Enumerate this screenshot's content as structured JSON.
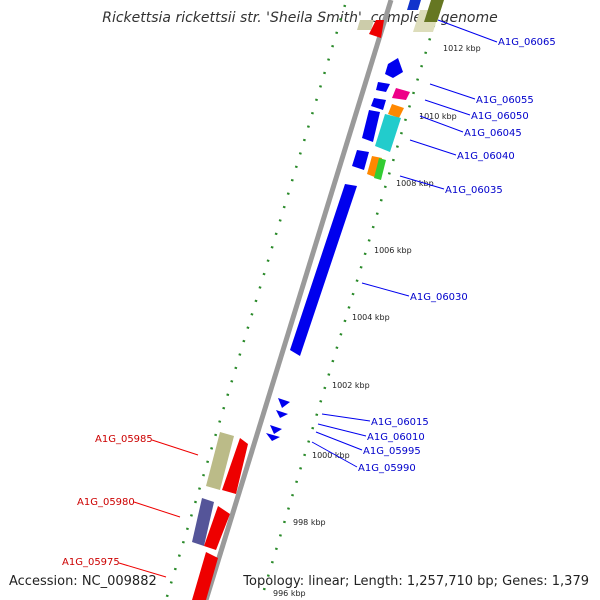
{
  "title": "Rickettsia rickettsii str. 'Sheila Smith', complete genome",
  "accession": "Accession: NC_009882",
  "summary": "Topology: linear; Length: 1,257,710 bp; Genes: 1,379",
  "colors": {
    "forward": "#0000ee",
    "reverse": "#ee0000",
    "axis": "#888888",
    "tick": "#228822"
  },
  "kbp_labels": [
    "996 kbp",
    "998 kbp",
    "1000 kbp",
    "1002 kbp",
    "1004 kbp",
    "1006 kbp",
    "1008 kbp",
    "1010 kbp",
    "1012 kbp"
  ],
  "forward_genes": [
    "A1G_06065",
    "A1G_06055",
    "A1G_06050",
    "A1G_06045",
    "A1G_06040",
    "A1G_06035",
    "A1G_06030",
    "A1G_06015",
    "A1G_06010",
    "A1G_05995",
    "A1G_05990"
  ],
  "reverse_genes": [
    "A1G_05985",
    "A1G_05980",
    "A1G_05975"
  ]
}
